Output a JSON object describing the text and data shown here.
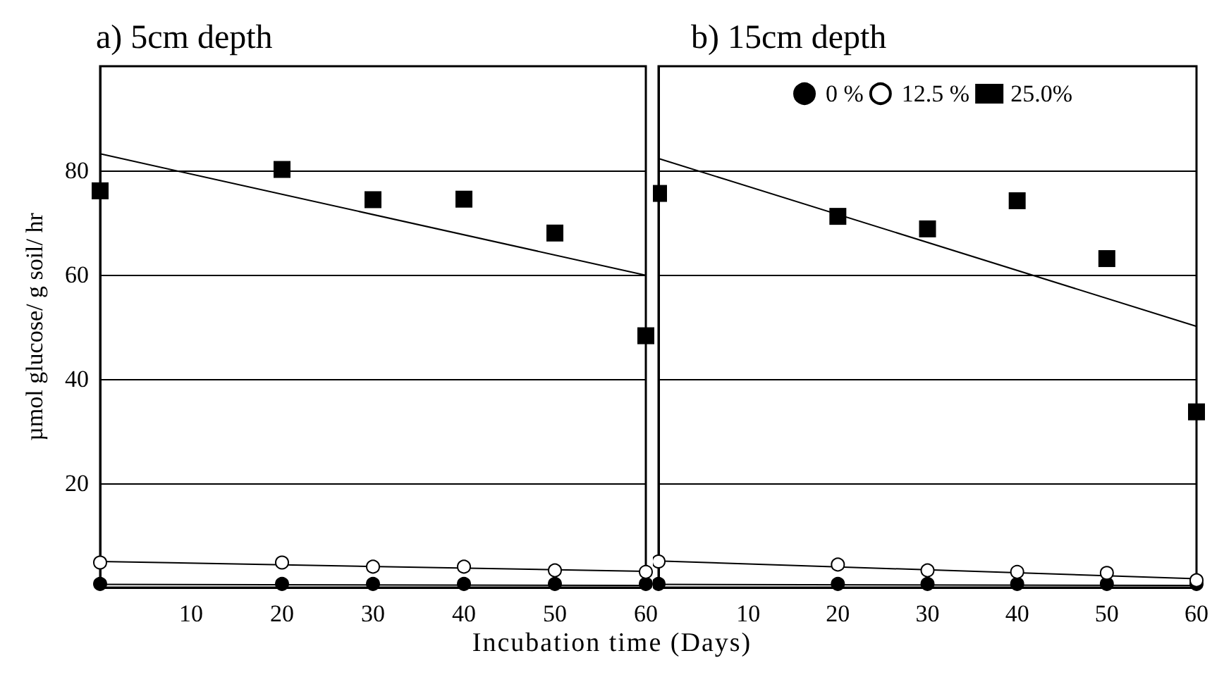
{
  "chart_data": [
    {
      "type": "scatter",
      "title": "a) 5cm depth",
      "xlabel": "Incubation time (Days)",
      "ylabel": "µmol glucose/ g soil/ hr",
      "xlim": [
        0,
        60
      ],
      "xticks": [
        10,
        20,
        30,
        40,
        50,
        60
      ],
      "ylim": [
        0,
        100
      ],
      "yticks": [
        20,
        40,
        60,
        80
      ],
      "grid": "y",
      "legend": false,
      "series": [
        {
          "marker": "circle",
          "color": "#000000",
          "x": [
            0,
            20,
            30,
            40,
            50,
            60
          ],
          "values": [
            0.7,
            0.7,
            0.7,
            0.7,
            0.7,
            0.7
          ]
        },
        {
          "marker": "circle",
          "color": "#ffffff",
          "x": [
            0,
            20,
            30,
            40,
            50,
            60
          ],
          "values": [
            4.8,
            4.8,
            4.0,
            4.0,
            3.3,
            3.0
          ]
        },
        {
          "marker": "square",
          "color": "#000000",
          "x": [
            0,
            20,
            30,
            40,
            50,
            60
          ],
          "values": [
            76.1,
            80.2,
            74.4,
            74.5,
            68.0,
            48.3
          ]
        },
        {
          "type": "line",
          "marker": "none",
          "color": "#000000",
          "x": [
            0,
            60
          ],
          "values": [
            0.6,
            0.4
          ]
        },
        {
          "type": "line",
          "marker": "none",
          "color": "#000000",
          "x": [
            0,
            60
          ],
          "values": [
            5.0,
            3.1
          ]
        },
        {
          "type": "line",
          "marker": "none",
          "color": "#000000",
          "x": [
            0,
            60
          ],
          "values": [
            83.2,
            59.9
          ]
        }
      ]
    },
    {
      "type": "scatter",
      "title": "b) 15cm depth",
      "xlim": [
        0,
        60
      ],
      "xticks": [
        10,
        20,
        30,
        40,
        50,
        60
      ],
      "ylim": [
        0,
        100
      ],
      "yticks": [
        20,
        40,
        60,
        80
      ],
      "grid": "y",
      "legend": "top",
      "tick_labels": "x",
      "series": [
        {
          "name": "0 %",
          "marker": "circle",
          "color": "#000000",
          "x": [
            0,
            20,
            30,
            40,
            50,
            60
          ],
          "values": [
            0.7,
            0.7,
            0.7,
            0.7,
            0.7,
            0.7
          ]
        },
        {
          "name": "12.5 %",
          "marker": "circle",
          "color": "#ffffff",
          "x": [
            0,
            20,
            30,
            40,
            50,
            60
          ],
          "values": [
            5.0,
            4.4,
            3.3,
            3.0,
            2.8,
            1.4
          ]
        },
        {
          "name": "25.0%",
          "marker": "square",
          "color": "#000000",
          "x": [
            0,
            20,
            30,
            40,
            50,
            60
          ],
          "values": [
            75.6,
            71.2,
            68.8,
            74.2,
            63.1,
            33.7
          ]
        },
        {
          "type": "line",
          "marker": "none",
          "color": "#000000",
          "x": [
            0,
            60
          ],
          "values": [
            0.6,
            0.4
          ]
        },
        {
          "type": "line",
          "marker": "none",
          "color": "#000000",
          "x": [
            0,
            60
          ],
          "values": [
            5.1,
            1.7
          ]
        },
        {
          "type": "line",
          "marker": "none",
          "color": "#000000",
          "x": [
            0,
            60
          ],
          "values": [
            82.3,
            50.1
          ]
        }
      ]
    }
  ]
}
